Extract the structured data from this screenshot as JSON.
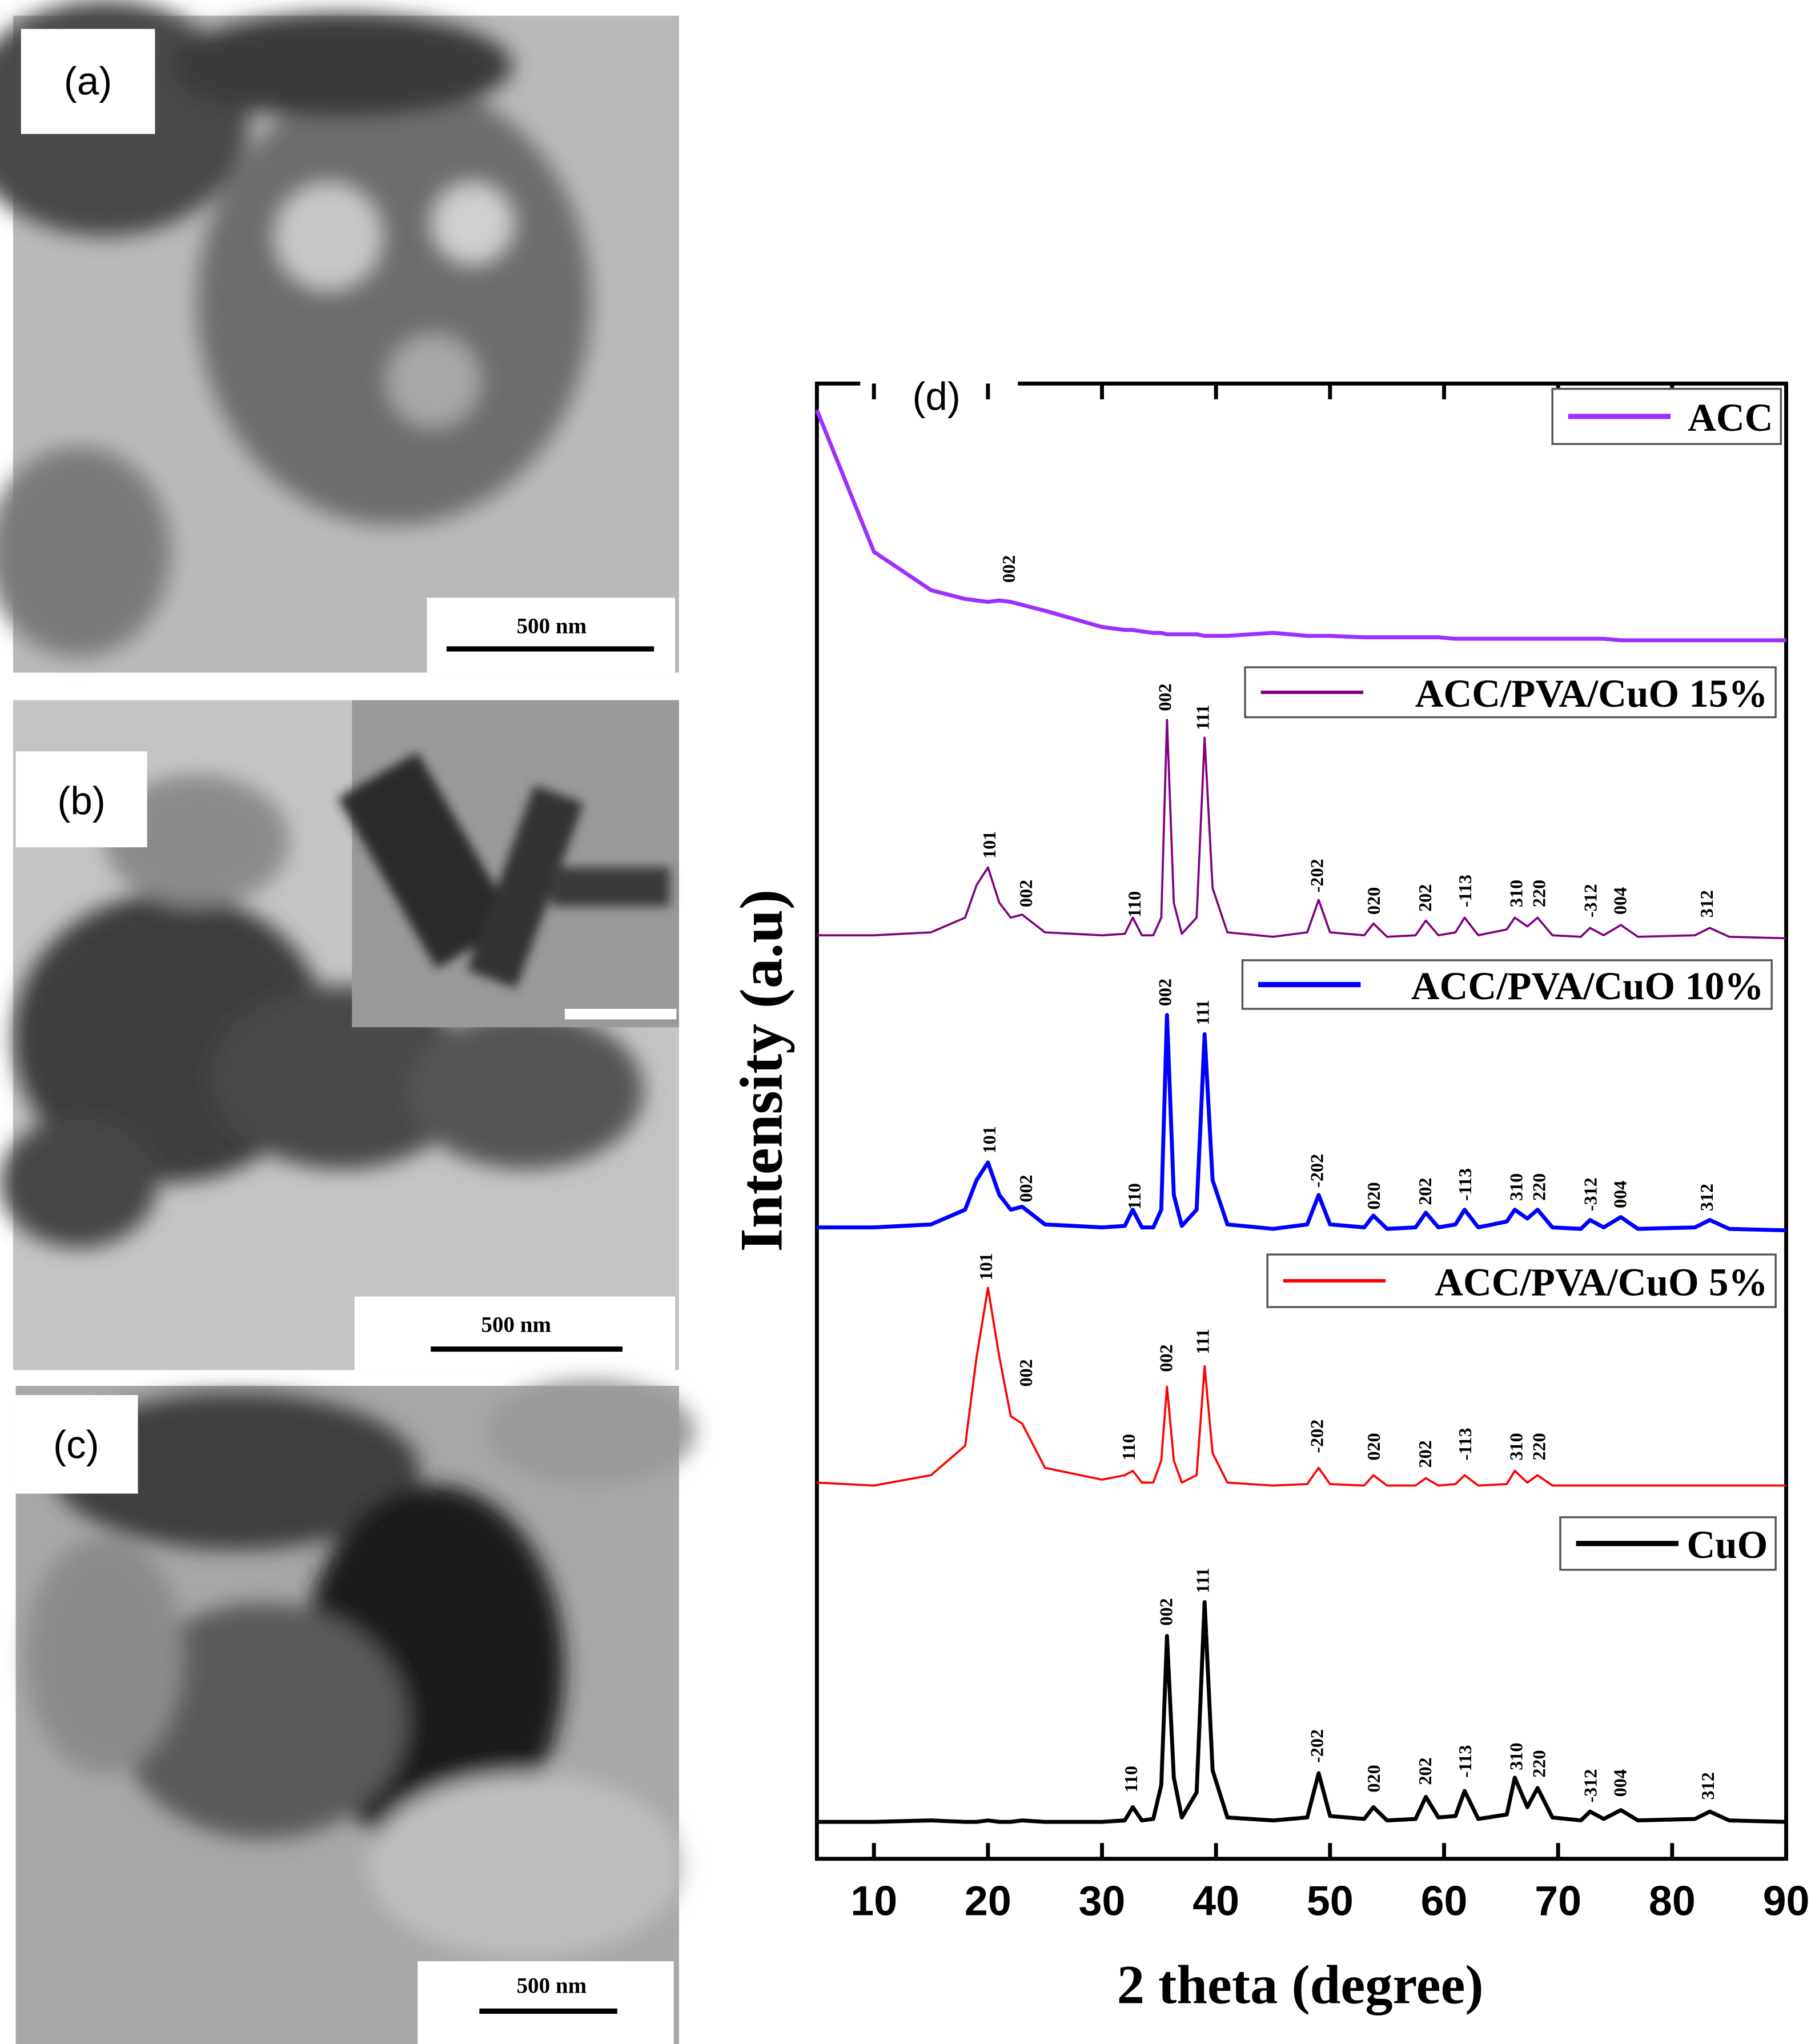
{
  "panels": [
    {
      "label": "(a)",
      "scale_bar": "500 nm"
    },
    {
      "label": "(b)",
      "scale_bar": "500 nm"
    },
    {
      "label": "(c)",
      "scale_bar": "500 nm"
    }
  ],
  "chart_data": {
    "type": "line",
    "panel_label": "(d)",
    "xlabel": "2 theta (degree)",
    "ylabel": "Intensity (a.u)",
    "xlim": [
      5,
      90
    ],
    "ylim": [
      0,
      100
    ],
    "xticks": [
      10,
      20,
      30,
      40,
      50,
      60,
      70,
      80,
      90
    ],
    "grid": false,
    "x": [
      5,
      10,
      15,
      18,
      19,
      20,
      21,
      22,
      23,
      25,
      30,
      32,
      32.7,
      33.5,
      34.5,
      35.2,
      35.7,
      36.3,
      37,
      38.3,
      39,
      39.7,
      41,
      45,
      48,
      49,
      50,
      53,
      53.8,
      55,
      57.5,
      58.4,
      59.5,
      61,
      61.8,
      63,
      65.5,
      66.2,
      67.3,
      68.2,
      69.5,
      72,
      72.8,
      74,
      75.5,
      77,
      82,
      83.3,
      85,
      90
    ],
    "series": [
      {
        "name": "ACC",
        "color": "#9b30ff",
        "values": [
          98.2,
          88.6,
          86,
          85.4,
          85.3,
          85.2,
          85.3,
          85.2,
          85,
          84.6,
          83.5,
          83.3,
          83.3,
          83.2,
          83.1,
          83.1,
          83,
          83,
          83,
          83,
          82.9,
          82.9,
          82.9,
          83.1,
          82.9,
          82.9,
          82.9,
          82.8,
          82.8,
          82.8,
          82.8,
          82.8,
          82.8,
          82.7,
          82.7,
          82.7,
          82.7,
          82.7,
          82.7,
          82.7,
          82.7,
          82.7,
          82.7,
          82.7,
          82.6,
          82.6,
          82.6,
          82.6,
          82.6,
          82.6
        ],
        "peaks": [
          {
            "label": "002",
            "x": 22,
            "y": 86.5
          }
        ]
      },
      {
        "name": "ACC/PVA/CuO 15%",
        "color": "#800080",
        "values": [
          62.6,
          62.6,
          62.8,
          63.8,
          66,
          67.2,
          64.8,
          63.8,
          64,
          62.8,
          62.6,
          62.7,
          63.8,
          62.6,
          62.6,
          63.8,
          77.2,
          64.8,
          62.7,
          63.8,
          76,
          65.8,
          62.8,
          62.5,
          62.8,
          65,
          62.8,
          62.6,
          63.4,
          62.5,
          62.6,
          63.6,
          62.6,
          62.8,
          63.8,
          62.6,
          63,
          63.8,
          63.2,
          63.8,
          62.6,
          62.5,
          63.1,
          62.6,
          63.3,
          62.5,
          62.6,
          63.1,
          62.5,
          62.4
        ],
        "peaks": [
          {
            "label": "101",
            "x": 20.3,
            "y": 67.8
          },
          {
            "label": "002",
            "x": 23.5,
            "y": 64.5
          },
          {
            "label": "110",
            "x": 33,
            "y": 63.8
          },
          {
            "label": "002",
            "x": 35.7,
            "y": 77.8
          },
          {
            "label": "111",
            "x": 39,
            "y": 76.5
          },
          {
            "label": "-202",
            "x": 49,
            "y": 65.5
          },
          {
            "label": "020",
            "x": 54,
            "y": 64
          },
          {
            "label": "202",
            "x": 58.5,
            "y": 64.2
          },
          {
            "label": "-113",
            "x": 62,
            "y": 64.5
          },
          {
            "label": "310",
            "x": 66.5,
            "y": 64.5
          },
          {
            "label": "220",
            "x": 68.5,
            "y": 64.5
          },
          {
            "label": "-312",
            "x": 73,
            "y": 63.8
          },
          {
            "label": "004",
            "x": 75.6,
            "y": 64
          },
          {
            "label": "312",
            "x": 83.2,
            "y": 63.8
          }
        ]
      },
      {
        "name": "ACC/PVA/CuO 10%",
        "color": "#0000ff",
        "values": [
          42.8,
          42.8,
          43,
          44,
          46,
          47.2,
          45,
          44,
          44.2,
          43,
          42.8,
          42.9,
          44,
          42.8,
          42.8,
          44,
          57.2,
          45,
          42.9,
          44,
          55.9,
          46,
          43,
          42.7,
          43,
          45,
          43,
          42.8,
          43.6,
          42.7,
          42.8,
          43.8,
          42.8,
          43,
          44,
          42.8,
          43.2,
          44,
          43.4,
          44,
          42.8,
          42.7,
          43.3,
          42.8,
          43.5,
          42.7,
          42.8,
          43.3,
          42.7,
          42.6
        ],
        "peaks": [
          {
            "label": "101",
            "x": 20.3,
            "y": 47.8
          },
          {
            "label": "002",
            "x": 23.5,
            "y": 44.5
          },
          {
            "label": "110",
            "x": 33,
            "y": 44
          },
          {
            "label": "002",
            "x": 35.7,
            "y": 57.8
          },
          {
            "label": "111",
            "x": 39,
            "y": 56.5
          },
          {
            "label": "-202",
            "x": 49,
            "y": 45.5
          },
          {
            "label": "020",
            "x": 54,
            "y": 44
          },
          {
            "label": "202",
            "x": 58.5,
            "y": 44.3
          },
          {
            "label": "-113",
            "x": 62,
            "y": 44.6
          },
          {
            "label": "310",
            "x": 66.5,
            "y": 44.6
          },
          {
            "label": "220",
            "x": 68.5,
            "y": 44.6
          },
          {
            "label": "-312",
            "x": 73,
            "y": 43.9
          },
          {
            "label": "004",
            "x": 75.6,
            "y": 44.1
          },
          {
            "label": "312",
            "x": 83.2,
            "y": 43.9
          }
        ]
      },
      {
        "name": "ACC/PVA/CuO 5%",
        "color": "#ff0000",
        "values": [
          25.5,
          25.3,
          26,
          28,
          34,
          38.7,
          34,
          30,
          29.5,
          26.5,
          25.7,
          26,
          26.3,
          25.5,
          25.5,
          27,
          32,
          27,
          25.5,
          26,
          33.4,
          27.5,
          25.5,
          25.3,
          25.4,
          26.5,
          25.4,
          25.3,
          26,
          25.3,
          25.3,
          25.8,
          25.3,
          25.4,
          26,
          25.3,
          25.4,
          26.3,
          25.5,
          26,
          25.3,
          25.3,
          25.3,
          25.3,
          25.3,
          25.3,
          25.3,
          25.3,
          25.3,
          25.3
        ],
        "peaks": [
          {
            "label": "101",
            "x": 20,
            "y": 39.2
          },
          {
            "label": "002",
            "x": 23.5,
            "y": 32
          },
          {
            "label": "110",
            "x": 32.5,
            "y": 27
          },
          {
            "label": "002",
            "x": 35.8,
            "y": 33
          },
          {
            "label": "111",
            "x": 39,
            "y": 34.2
          },
          {
            "label": "-202",
            "x": 49,
            "y": 27.5
          },
          {
            "label": "020",
            "x": 54,
            "y": 27
          },
          {
            "label": "202",
            "x": 58.5,
            "y": 26.5
          },
          {
            "label": "-113",
            "x": 62,
            "y": 27
          },
          {
            "label": "310",
            "x": 66.5,
            "y": 27
          },
          {
            "label": "220",
            "x": 68.5,
            "y": 27
          }
        ]
      },
      {
        "name": "CuO",
        "color": "#000000",
        "values": [
          2.5,
          2.5,
          2.6,
          2.5,
          2.5,
          2.6,
          2.5,
          2.5,
          2.6,
          2.5,
          2.5,
          2.6,
          3.5,
          2.6,
          2.7,
          5,
          15.1,
          5.5,
          2.8,
          4.5,
          17.4,
          6,
          2.8,
          2.6,
          2.8,
          5.8,
          2.9,
          2.7,
          3.5,
          2.6,
          2.7,
          4.2,
          2.8,
          2.9,
          4.6,
          2.7,
          3,
          5.5,
          3.5,
          4.8,
          2.8,
          2.6,
          3.2,
          2.7,
          3.3,
          2.6,
          2.7,
          3.2,
          2.6,
          2.5
        ],
        "peaks": [
          {
            "label": "110",
            "x": 32.7,
            "y": 4.5
          },
          {
            "label": "002",
            "x": 35.8,
            "y": 15.8
          },
          {
            "label": "111",
            "x": 39,
            "y": 18
          },
          {
            "label": "-202",
            "x": 49,
            "y": 6.5
          },
          {
            "label": "020",
            "x": 54,
            "y": 4.5
          },
          {
            "label": "202",
            "x": 58.5,
            "y": 5
          },
          {
            "label": "-113",
            "x": 62,
            "y": 5.5
          },
          {
            "label": "310",
            "x": 66.5,
            "y": 6
          },
          {
            "label": "220",
            "x": 68.5,
            "y": 5.5
          },
          {
            "label": "-312",
            "x": 73,
            "y": 3.8
          },
          {
            "label": "004",
            "x": 75.6,
            "y": 4.2
          },
          {
            "label": "312",
            "x": 83.3,
            "y": 4
          }
        ]
      }
    ]
  }
}
